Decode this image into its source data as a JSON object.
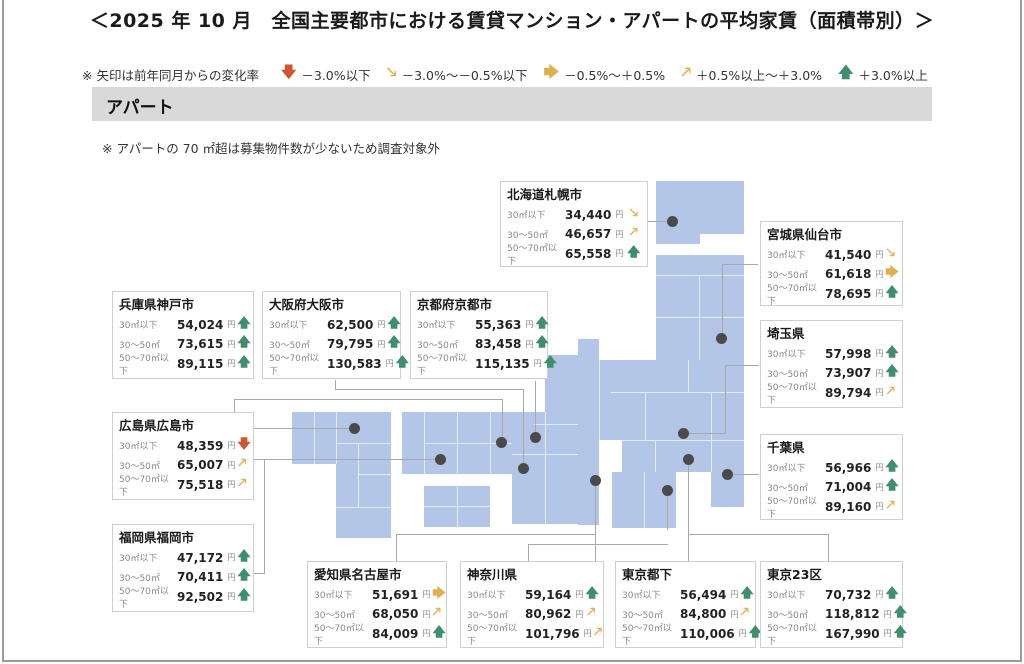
{
  "title": "＜2025 年 10 月　全国主要都市における賃貸マンション・アパートの平均家賃（面積帯別）＞",
  "legend": {
    "note": "※ 矢印は前年同月からの変化率",
    "items": [
      {
        "icon": "arrow-down-icon",
        "glyph": "🡇",
        "color": "#d0542f",
        "label": "－3.0%以下"
      },
      {
        "icon": "arrow-down-right-icon",
        "glyph": "🡖",
        "color": "#e0b050",
        "label": "－3.0%～－0.5%以下"
      },
      {
        "icon": "arrow-right-icon",
        "glyph": "🡆",
        "color": "#e0b050",
        "label": "－0.5%～＋0.5%"
      },
      {
        "icon": "arrow-up-right-icon",
        "glyph": "🡕",
        "color": "#e0b050",
        "label": "＋0.5%以上～＋3.0%"
      },
      {
        "icon": "arrow-up-icon",
        "glyph": "🡅",
        "color": "#3f8f6e",
        "label": "＋3.0%以上"
      }
    ]
  },
  "section": {
    "title": "アパート"
  },
  "subnote": "※ アパートの 70 ㎡超は募集物件数が少ないため調査対象外",
  "arrows": {
    "down": {
      "glyph": "🡇",
      "color": "#d0542f"
    },
    "down_right": {
      "glyph": "🡖",
      "color": "#e0b050"
    },
    "right": {
      "glyph": "🡆",
      "color": "#e0b050"
    },
    "up_right": {
      "glyph": "🡕",
      "color": "#e0b050"
    },
    "up": {
      "glyph": "🡅",
      "color": "#3f8f6e"
    }
  },
  "yen": "円",
  "cities": [
    {
      "id": "sapporo",
      "name": "北海道札幌市",
      "rows": [
        {
          "label": "30㎡以下",
          "value": "34,440",
          "trend": "down_right"
        },
        {
          "label": "30～50㎡",
          "value": "46,657",
          "trend": "up_right"
        },
        {
          "label": "50～70㎡以下",
          "value": "65,558",
          "trend": "up"
        }
      ]
    },
    {
      "id": "sendai",
      "name": "宮城県仙台市",
      "rows": [
        {
          "label": "30㎡以下",
          "value": "41,540",
          "trend": "down_right"
        },
        {
          "label": "30～50㎡",
          "value": "61,618",
          "trend": "right"
        },
        {
          "label": "50～70㎡以下",
          "value": "78,695",
          "trend": "up"
        }
      ]
    },
    {
      "id": "saitama",
      "name": "埼玉県",
      "rows": [
        {
          "label": "30㎡以下",
          "value": "57,998",
          "trend": "up"
        },
        {
          "label": "30～50㎡",
          "value": "73,907",
          "trend": "up"
        },
        {
          "label": "50～70㎡以下",
          "value": "89,794",
          "trend": "up_right"
        }
      ]
    },
    {
      "id": "chiba",
      "name": "千葉県",
      "rows": [
        {
          "label": "30㎡以下",
          "value": "56,966",
          "trend": "up"
        },
        {
          "label": "30～50㎡",
          "value": "71,004",
          "trend": "up"
        },
        {
          "label": "50～70㎡以下",
          "value": "89,160",
          "trend": "up_right"
        }
      ]
    },
    {
      "id": "kobe",
      "name": "兵庫県神戸市",
      "rows": [
        {
          "label": "30㎡以下",
          "value": "54,024",
          "trend": "up"
        },
        {
          "label": "30～50㎡",
          "value": "73,615",
          "trend": "up"
        },
        {
          "label": "50～70㎡以下",
          "value": "89,115",
          "trend": "up"
        }
      ]
    },
    {
      "id": "osaka",
      "name": "大阪府大阪市",
      "rows": [
        {
          "label": "30㎡以下",
          "value": "62,500",
          "trend": "up"
        },
        {
          "label": "30～50㎡",
          "value": "79,795",
          "trend": "up"
        },
        {
          "label": "50～70㎡以下",
          "value": "130,583",
          "trend": "up"
        }
      ]
    },
    {
      "id": "kyoto",
      "name": "京都府京都市",
      "rows": [
        {
          "label": "30㎡以下",
          "value": "55,363",
          "trend": "up"
        },
        {
          "label": "30～50㎡",
          "value": "83,458",
          "trend": "up"
        },
        {
          "label": "50～70㎡以下",
          "value": "115,135",
          "trend": "up"
        }
      ]
    },
    {
      "id": "hiroshima",
      "name": "広島県広島市",
      "rows": [
        {
          "label": "30㎡以下",
          "value": "48,359",
          "trend": "down"
        },
        {
          "label": "30～50㎡",
          "value": "65,007",
          "trend": "up_right"
        },
        {
          "label": "50～70㎡以下",
          "value": "75,518",
          "trend": "up_right"
        }
      ]
    },
    {
      "id": "fukuoka",
      "name": "福岡県福岡市",
      "rows": [
        {
          "label": "30㎡以下",
          "value": "47,172",
          "trend": "up"
        },
        {
          "label": "30～50㎡",
          "value": "70,411",
          "trend": "up"
        },
        {
          "label": "50～70㎡以下",
          "value": "92,502",
          "trend": "up"
        }
      ]
    },
    {
      "id": "nagoya",
      "name": "愛知県名古屋市",
      "rows": [
        {
          "label": "30㎡以下",
          "value": "51,691",
          "trend": "right"
        },
        {
          "label": "30～50㎡",
          "value": "68,050",
          "trend": "up_right"
        },
        {
          "label": "50～70㎡以下",
          "value": "84,009",
          "trend": "up"
        }
      ]
    },
    {
      "id": "kanagawa",
      "name": "神奈川県",
      "rows": [
        {
          "label": "30㎡以下",
          "value": "59,164",
          "trend": "up"
        },
        {
          "label": "30～50㎡",
          "value": "80,962",
          "trend": "up_right"
        },
        {
          "label": "50～70㎡以下",
          "value": "101,796",
          "trend": "up_right"
        }
      ]
    },
    {
      "id": "tokyo_shika",
      "name": "東京都下",
      "rows": [
        {
          "label": "30㎡以下",
          "value": "56,494",
          "trend": "up"
        },
        {
          "label": "30～50㎡",
          "value": "84,800",
          "trend": "up_right"
        },
        {
          "label": "50～70㎡以下",
          "value": "110,006",
          "trend": "up"
        }
      ]
    },
    {
      "id": "tokyo23",
      "name": "東京23区",
      "rows": [
        {
          "label": "30㎡以下",
          "value": "70,732",
          "trend": "up"
        },
        {
          "label": "30～50㎡",
          "value": "118,812",
          "trend": "up"
        },
        {
          "label": "50～70㎡以下",
          "value": "167,990",
          "trend": "up"
        }
      ]
    }
  ]
}
